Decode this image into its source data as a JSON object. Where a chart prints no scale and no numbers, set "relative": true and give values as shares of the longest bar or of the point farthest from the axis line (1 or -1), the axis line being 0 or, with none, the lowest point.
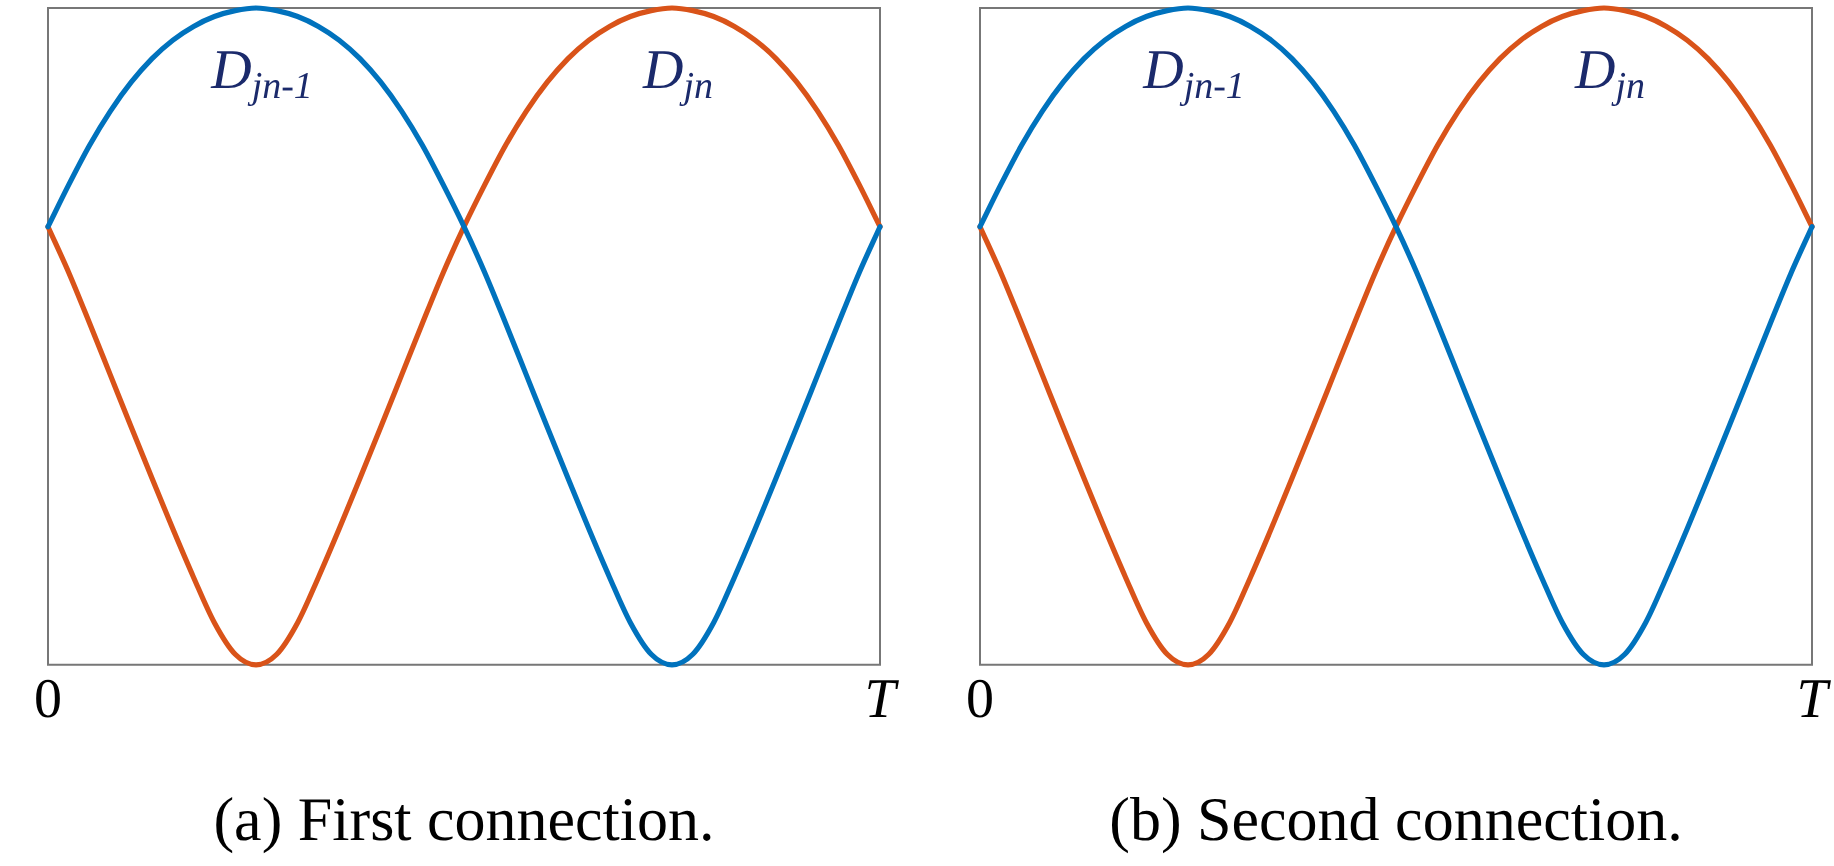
{
  "chart_data": [
    {
      "type": "line",
      "annotations": [
        "(a) First connection."
      ],
      "relative": true,
      "marker": "none",
      "line_style": "solid",
      "categories": [
        "0",
        null,
        null,
        null,
        null,
        null,
        null,
        null,
        null,
        null,
        null,
        null,
        null,
        null,
        null,
        null,
        null,
        null,
        null,
        null,
        null,
        null,
        null,
        null,
        null,
        null,
        null,
        null,
        null,
        null,
        null,
        null,
        null,
        null,
        null,
        null,
        null,
        null,
        null,
        null,
        "T"
      ],
      "series": [
        {
          "name": "D$_{jn-1}$",
          "color": "#0072bd",
          "values": [
            0.667,
            0.731,
            0.791,
            0.843,
            0.887,
            0.923,
            0.951,
            0.972,
            0.987,
            0.996,
            1,
            0.996,
            0.987,
            0.972,
            0.951,
            0.923,
            0.887,
            0.843,
            0.791,
            0.731,
            0.667,
            0.597,
            0.52,
            0.441,
            0.362,
            0.284,
            0.207,
            0.133,
            0.064,
            0.016,
            0,
            0.016,
            0.064,
            0.133,
            0.207,
            0.284,
            0.362,
            0.441,
            0.52,
            0.597,
            0.667
          ]
        },
        {
          "name": "D$_{jn}$",
          "color": "#d95319",
          "values": [
            0.667,
            0.597,
            0.52,
            0.441,
            0.362,
            0.284,
            0.207,
            0.133,
            0.064,
            0.016,
            0,
            0.016,
            0.064,
            0.133,
            0.207,
            0.284,
            0.362,
            0.441,
            0.52,
            0.597,
            0.667,
            0.731,
            0.791,
            0.843,
            0.887,
            0.923,
            0.951,
            0.972,
            0.987,
            0.996,
            1,
            0.996,
            0.987,
            0.972,
            0.951,
            0.923,
            0.887,
            0.843,
            0.791,
            0.731,
            0.667
          ]
        }
      ]
    },
    {
      "type": "line",
      "annotations": [
        "(b) Second connection."
      ],
      "relative": true,
      "marker": "none",
      "line_style": "solid",
      "categories": [
        "0",
        null,
        null,
        null,
        null,
        null,
        null,
        null,
        null,
        null,
        null,
        null,
        null,
        null,
        null,
        null,
        null,
        null,
        null,
        null,
        null,
        null,
        null,
        null,
        null,
        null,
        null,
        null,
        null,
        null,
        null,
        null,
        null,
        null,
        null,
        null,
        null,
        null,
        null,
        null,
        "T"
      ],
      "series": [
        {
          "name": "D$_{jn-1}$",
          "color": "#0072bd",
          "values": [
            0.667,
            0.731,
            0.791,
            0.843,
            0.887,
            0.923,
            0.951,
            0.972,
            0.987,
            0.996,
            1,
            0.996,
            0.987,
            0.972,
            0.951,
            0.923,
            0.887,
            0.843,
            0.791,
            0.731,
            0.667,
            0.597,
            0.52,
            0.441,
            0.362,
            0.284,
            0.207,
            0.133,
            0.064,
            0.016,
            0,
            0.016,
            0.064,
            0.133,
            0.207,
            0.284,
            0.362,
            0.441,
            0.52,
            0.597,
            0.667
          ]
        },
        {
          "name": "D$_{jn}$",
          "color": "#d95319",
          "values": [
            0.667,
            0.597,
            0.52,
            0.441,
            0.362,
            0.284,
            0.207,
            0.133,
            0.064,
            0.016,
            0,
            0.016,
            0.064,
            0.133,
            0.207,
            0.284,
            0.362,
            0.441,
            0.52,
            0.597,
            0.667,
            0.731,
            0.791,
            0.843,
            0.887,
            0.923,
            0.951,
            0.972,
            0.987,
            0.996,
            1,
            0.996,
            0.987,
            0.972,
            0.951,
            0.923,
            0.887,
            0.843,
            0.791,
            0.731,
            0.667
          ]
        }
      ]
    }
  ]
}
